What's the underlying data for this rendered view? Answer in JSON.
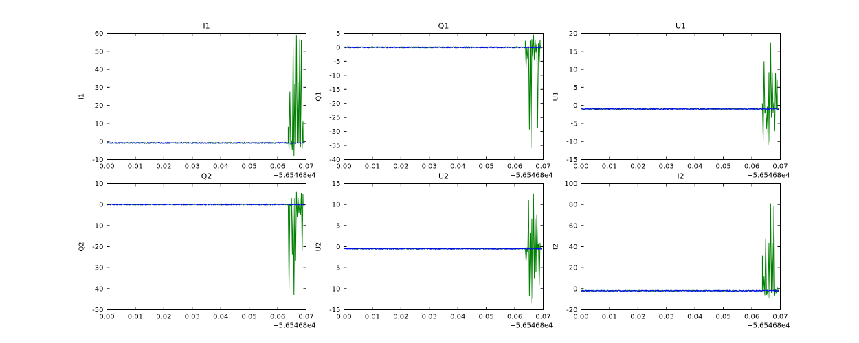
{
  "figure": {
    "background": "#ffffff",
    "axis_color": "#000000"
  },
  "chart_data": [
    {
      "type": "line",
      "id": "I1",
      "title": "I1",
      "ylabel": "I1",
      "xlim": [
        0,
        0.07
      ],
      "xtick_step": 0.01,
      "xtick_labels": [
        "0.00",
        "0.01",
        "0.02",
        "0.03",
        "0.04",
        "0.05",
        "0.06",
        "0.07"
      ],
      "x_offset_label": "+5.65468e4",
      "ylim": [
        -10,
        60
      ],
      "ytick_labels": [
        "-10",
        "0",
        "10",
        "20",
        "30",
        "40",
        "50",
        "60"
      ],
      "grid": false,
      "legend": null,
      "data_end": 0.0695,
      "series": [
        {
          "name": "green",
          "color": "#008000",
          "baseline": -0.8,
          "noise": 0.3,
          "burst": {
            "x_start": 0.0637,
            "x_end": 0.0689,
            "y_min": -8,
            "y_max": 59
          }
        },
        {
          "name": "blue",
          "color": "#0000ff",
          "baseline": -0.8,
          "noise": 0.3
        }
      ]
    },
    {
      "type": "line",
      "id": "Q1",
      "title": "Q1",
      "ylabel": "Q1",
      "xlim": [
        0,
        0.07
      ],
      "xtick_step": 0.01,
      "xtick_labels": [
        "0.00",
        "0.01",
        "0.02",
        "0.03",
        "0.04",
        "0.05",
        "0.06",
        "0.07"
      ],
      "x_offset_label": "+5.65468e4",
      "ylim": [
        -40,
        5
      ],
      "ytick_labels": [
        "-40",
        "-35",
        "-30",
        "-25",
        "-20",
        "-15",
        "-10",
        "-5",
        "0",
        "5"
      ],
      "grid": false,
      "legend": null,
      "data_end": 0.0695,
      "series": [
        {
          "name": "green",
          "color": "#008000",
          "baseline": 0,
          "noise": 0.2,
          "burst": {
            "x_start": 0.0637,
            "x_end": 0.0689,
            "y_min": -36,
            "y_max": 4.5
          }
        },
        {
          "name": "blue",
          "color": "#0000ff",
          "baseline": 0,
          "noise": 0.2
        }
      ]
    },
    {
      "type": "line",
      "id": "U1",
      "title": "U1",
      "ylabel": "U1",
      "xlim": [
        0,
        0.07
      ],
      "xtick_step": 0.01,
      "xtick_labels": [
        "0.00",
        "0.01",
        "0.02",
        "0.03",
        "0.04",
        "0.05",
        "0.06",
        "0.07"
      ],
      "x_offset_label": "+5.65468e4",
      "ylim": [
        -15,
        20
      ],
      "ytick_labels": [
        "-15",
        "-10",
        "-5",
        "0",
        "5",
        "10",
        "15",
        "20"
      ],
      "grid": false,
      "legend": null,
      "data_end": 0.0695,
      "series": [
        {
          "name": "green",
          "color": "#008000",
          "baseline": -1,
          "noise": 0.15,
          "burst": {
            "x_start": 0.0637,
            "x_end": 0.0689,
            "y_min": -11,
            "y_max": 17.5
          }
        },
        {
          "name": "blue",
          "color": "#0000ff",
          "baseline": -1,
          "noise": 0.15
        }
      ]
    },
    {
      "type": "line",
      "id": "Q2",
      "title": "Q2",
      "ylabel": "Q2",
      "xlim": [
        0,
        0.07
      ],
      "xtick_step": 0.01,
      "xtick_labels": [
        "0.00",
        "0.01",
        "0.02",
        "0.03",
        "0.04",
        "0.05",
        "0.06",
        "0.07"
      ],
      "x_offset_label": "+5.65468e4",
      "ylim": [
        -50,
        10
      ],
      "ytick_labels": [
        "-50",
        "-40",
        "-30",
        "-20",
        "-10",
        "0",
        "10"
      ],
      "grid": false,
      "legend": null,
      "data_end": 0.0695,
      "series": [
        {
          "name": "green",
          "color": "#008000",
          "baseline": 0,
          "noise": 0.25,
          "burst": {
            "x_start": 0.0637,
            "x_end": 0.0689,
            "y_min": -43,
            "y_max": 6
          }
        },
        {
          "name": "blue",
          "color": "#0000ff",
          "baseline": 0,
          "noise": 0.25
        }
      ]
    },
    {
      "type": "line",
      "id": "U2",
      "title": "U2",
      "ylabel": "U2",
      "xlim": [
        0,
        0.07
      ],
      "xtick_step": 0.01,
      "xtick_labels": [
        "0.00",
        "0.01",
        "0.02",
        "0.03",
        "0.04",
        "0.05",
        "0.06",
        "0.07"
      ],
      "x_offset_label": "+5.65468e4",
      "ylim": [
        -15,
        15
      ],
      "ytick_labels": [
        "-15",
        "-10",
        "-5",
        "0",
        "5",
        "10",
        "15"
      ],
      "grid": false,
      "legend": null,
      "data_end": 0.0695,
      "series": [
        {
          "name": "green",
          "color": "#008000",
          "baseline": -0.5,
          "noise": 0.13,
          "burst": {
            "x_start": 0.0637,
            "x_end": 0.0689,
            "y_min": -13.5,
            "y_max": 12.5
          }
        },
        {
          "name": "blue",
          "color": "#0000ff",
          "baseline": -0.5,
          "noise": 0.13
        }
      ]
    },
    {
      "type": "line",
      "id": "I2",
      "title": "I2",
      "ylabel": "I2",
      "xlim": [
        0,
        0.07
      ],
      "xtick_step": 0.01,
      "xtick_labels": [
        "0.00",
        "0.01",
        "0.02",
        "0.03",
        "0.04",
        "0.05",
        "0.06",
        "0.07"
      ],
      "x_offset_label": "+5.65468e4",
      "ylim": [
        -20,
        100
      ],
      "ytick_labels": [
        "-20",
        "0",
        "20",
        "40",
        "60",
        "80",
        "100"
      ],
      "grid": false,
      "legend": null,
      "data_end": 0.0695,
      "series": [
        {
          "name": "green",
          "color": "#008000",
          "baseline": -2,
          "noise": 0.5,
          "burst": {
            "x_start": 0.0637,
            "x_end": 0.0689,
            "y_min": -9,
            "y_max": 81
          }
        },
        {
          "name": "blue",
          "color": "#0000ff",
          "baseline": -2,
          "noise": 0.5
        }
      ]
    }
  ]
}
